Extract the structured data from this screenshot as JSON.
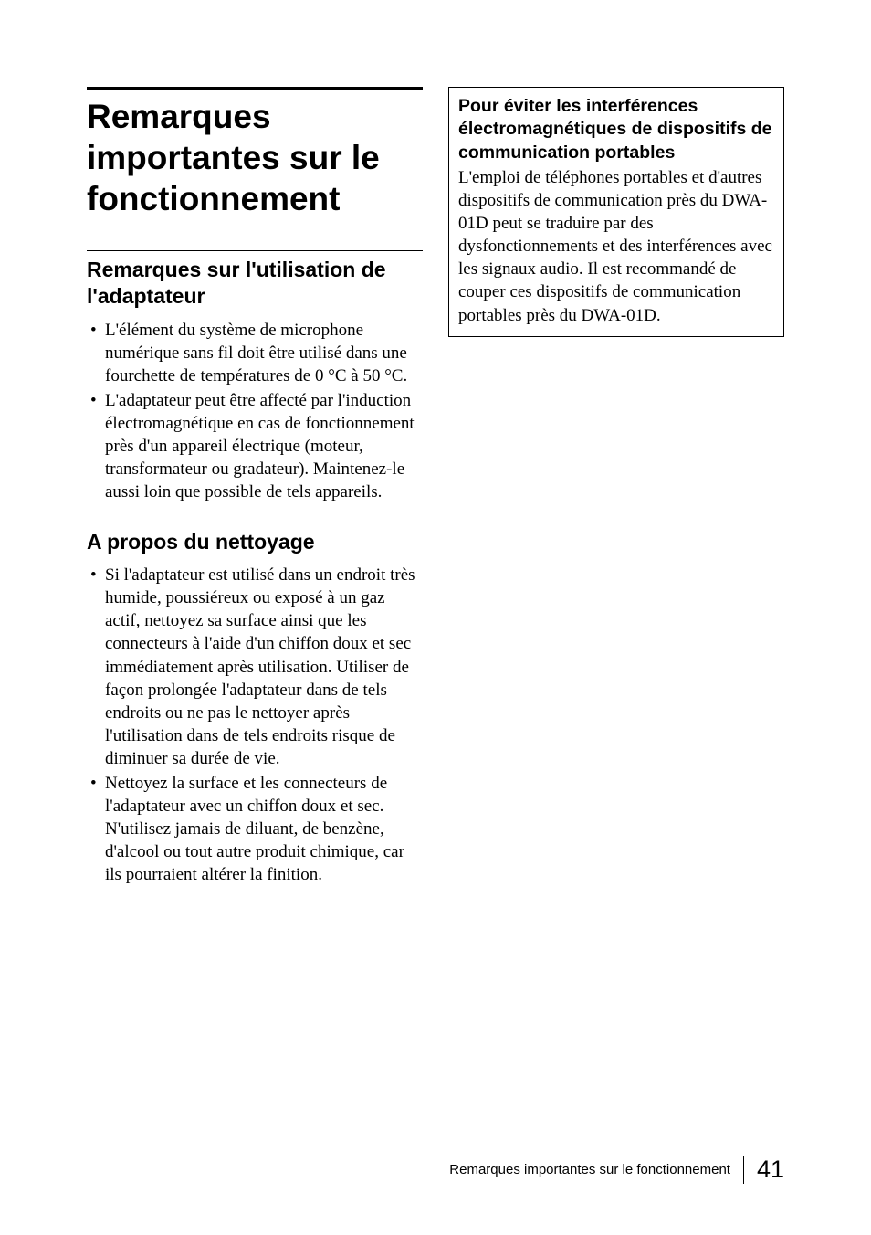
{
  "title": "Remarques importantes sur le fonctionnement",
  "left": {
    "section1": {
      "heading": "Remarques sur l'utilisation de l'adaptateur",
      "bullets": [
        "L'élément du système de microphone numérique sans fil doit être utilisé dans une fourchette de températures de 0 °C à 50 °C.",
        "L'adaptateur peut être affecté par l'induction électromagnétique en cas de fonctionnement près d'un appareil électrique (moteur, transformateur ou gradateur). Maintenez-le aussi loin que possible de tels appareils."
      ]
    },
    "section2": {
      "heading": "A propos du nettoyage",
      "bullets": [
        "Si l'adaptateur est utilisé dans un endroit très humide, poussiéreux ou exposé à un gaz actif, nettoyez sa surface ainsi que les connecteurs à l'aide d'un chiffon doux et sec immédiatement après utilisation. Utiliser de façon prolongée l'adaptateur dans de tels endroits ou ne pas le nettoyer après l'utilisation dans de tels endroits risque de diminuer sa durée de vie.",
        "Nettoyez la surface et les connecteurs de l'adaptateur avec un chiffon doux et sec. N'utilisez jamais de diluant, de benzène, d'alcool ou tout autre produit chimique, car ils pourraient altérer la finition."
      ]
    }
  },
  "right": {
    "note": {
      "heading": "Pour éviter les interférences électromagnétiques de dispositifs de communication portables",
      "body": "L'emploi de téléphones portables et d'autres dispositifs de communication près du DWA-01D peut se traduire par des dysfonctionnements et des interférences avec les signaux audio. Il est recommandé de couper ces dispositifs de communication portables près du DWA-01D."
    }
  },
  "footer": {
    "text": "Remarques importantes sur le fonctionnement",
    "page": "41"
  }
}
